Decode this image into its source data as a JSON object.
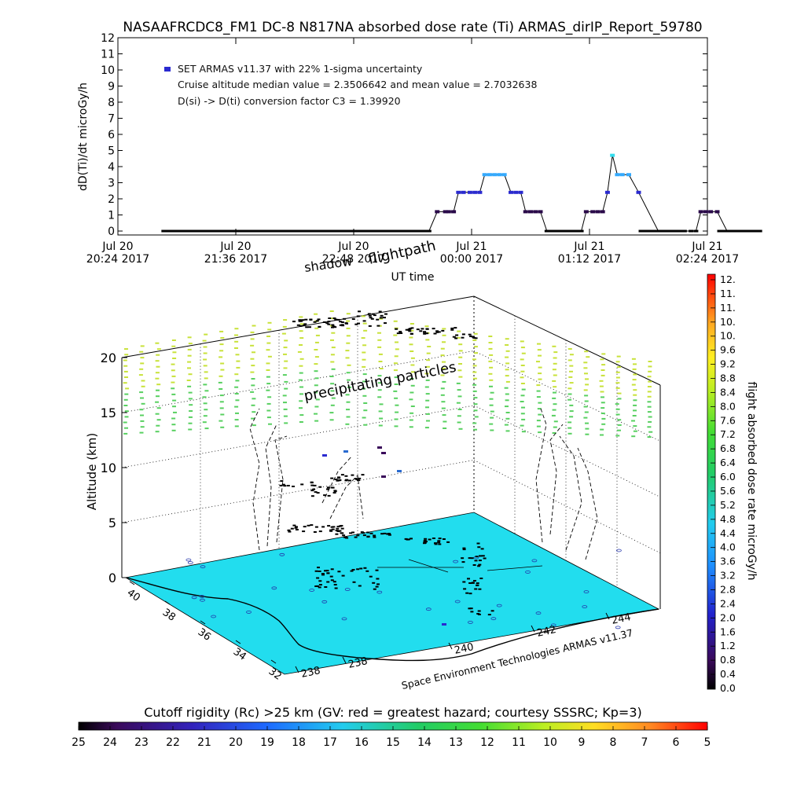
{
  "title": "NASAAFRCDC8_FM1 DC-8   N817NA absorbed dose rate (Ti) ARMAS_dirIP_Report_59780",
  "colors": {
    "background": "#ffffff",
    "axis": "#000000",
    "dose_low": "#2a0a4a",
    "dose_mid": "#2a2ad0",
    "dose_high": "#33aaff",
    "dose_peak": "#33ddee",
    "ground": "#22ddee",
    "particles_high": "#c8e23a",
    "particles_low": "#58d060"
  },
  "chart_data": [
    {
      "type": "line",
      "title": "NASAAFRCDC8_FM1 DC-8   N817NA absorbed dose rate (Ti) ARMAS_dirIP_Report_59780",
      "xlabel": "UT time",
      "ylabel": "dD(Ti)/dt microGy/h",
      "ylim": [
        0,
        12
      ],
      "yticks": [
        "0",
        "1",
        "2",
        "3",
        "4",
        "5",
        "6",
        "7",
        "8",
        "9",
        "10",
        "11",
        "12"
      ],
      "xticks": [
        {
          "line1": "Jul 20",
          "line2": "20:24 2017"
        },
        {
          "line1": "Jul 20",
          "line2": "21:36 2017"
        },
        {
          "line1": "Jul 20",
          "line2": "22:48 2017"
        },
        {
          "line1": "Jul 21",
          "line2": "00:00 2017"
        },
        {
          "line1": "Jul 21",
          "line2": "01:12 2017"
        },
        {
          "line1": "Jul 21",
          "line2": "02:24 2017"
        }
      ],
      "xrange_minutes_from_2024UT": [
        0,
        360
      ],
      "legend": {
        "placement": "top-left",
        "series_label": "SET ARMAS v11.37 with 22% 1-sigma uncertainty",
        "line2": "Cruise altitude median value = 2.3506642 and mean value = 2.7032638",
        "line3": "D(si) -> D(ti) conversion factor C3 = 1.39920"
      },
      "series": [
        {
          "name": "SET ARMAS v11.37 with 22% 1-sigma uncertainty",
          "x_minutes": [
            28,
            50,
            80,
            110,
            140,
            170,
            185,
            190,
            195,
            200,
            202,
            205,
            208,
            211,
            215,
            218,
            221,
            224,
            227,
            230,
            233,
            236,
            240,
            243,
            246,
            249,
            252,
            255,
            258,
            262,
            268,
            275,
            283,
            286,
            290,
            293,
            296,
            299,
            302,
            305,
            308,
            312,
            318,
            330,
            340,
            346,
            350,
            353,
            356,
            359,
            362,
            366,
            372,
            380,
            392
          ],
          "values": [
            0,
            0,
            0,
            0,
            0,
            0,
            0,
            0,
            1.2,
            1.2,
            1.2,
            1.2,
            2.4,
            2.4,
            2.4,
            2.4,
            2.4,
            3.5,
            3.5,
            3.5,
            3.5,
            3.5,
            2.4,
            2.4,
            2.4,
            1.2,
            1.2,
            1.2,
            1.2,
            0,
            0,
            0,
            0,
            1.2,
            1.2,
            1.2,
            1.2,
            2.4,
            4.7,
            3.5,
            3.5,
            3.5,
            2.4,
            0,
            0,
            0,
            0,
            0,
            1.2,
            1.2,
            1.2,
            1.2,
            0,
            0,
            0
          ],
          "x_unit": "minutes after Jul 20 20:24 UT"
        }
      ]
    },
    {
      "type": "scatter",
      "title": "",
      "zlabel": "Altitude (km)",
      "zticks": [
        "0",
        "5",
        "10",
        "15",
        "20"
      ],
      "zlim": [
        0,
        20
      ],
      "lat_ticks": [
        "40",
        "38",
        "36",
        "34",
        "32"
      ],
      "lon_ticks": [
        "238",
        "240",
        "242",
        "244"
      ],
      "lon_tick_labels_shown": [
        "238",
        "238",
        "240",
        "242",
        "244"
      ],
      "annotations": [
        "flightpath",
        "shadow",
        "precipitating particles"
      ],
      "credit": "Space Environment Technologies ARMAS v11.37"
    }
  ],
  "colorbar_dose": {
    "label": "flight absorbed dose rate microGy/h",
    "ticks": [
      "12.",
      "11.",
      "11.",
      "10.",
      "10.",
      "9.6",
      "9.2",
      "8.8",
      "8.4",
      "8.0",
      "7.6",
      "7.2",
      "6.8",
      "6.4",
      "6.0",
      "5.6",
      "5.2",
      "4.8",
      "4.4",
      "4.0",
      "3.6",
      "3.2",
      "2.8",
      "2.4",
      "2.0",
      "1.6",
      "1.2",
      "0.8",
      "0.4",
      "0.0"
    ]
  },
  "colorbar_rigidity": {
    "label": "Cutoff rigidity (Rc) >25 km (GV: red = greatest hazard; courtesy SSSRC; Kp=3)",
    "ticks": [
      "25",
      "24",
      "23",
      "22",
      "21",
      "20",
      "19",
      "18",
      "17",
      "16",
      "15",
      "14",
      "13",
      "12",
      "11",
      "10",
      "9",
      "8",
      "7",
      "6",
      "5"
    ]
  }
}
